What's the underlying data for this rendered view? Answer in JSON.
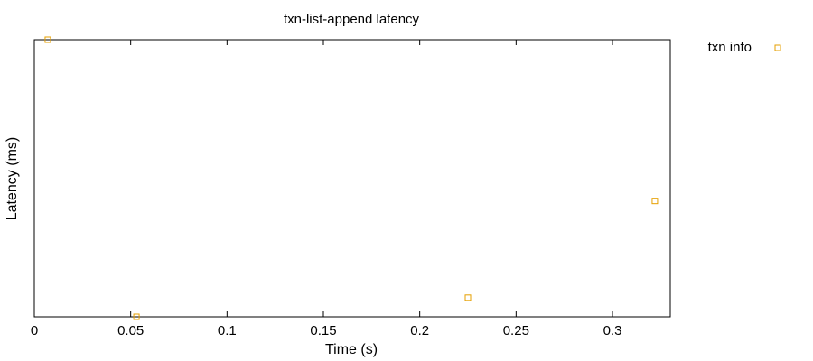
{
  "chart_data": {
    "type": "scatter",
    "title": "txn-list-append latency",
    "xlabel": "Time (s)",
    "ylabel": "Latency (ms)",
    "xlim": [
      0,
      0.33
    ],
    "x_ticks": [
      {
        "value": 0,
        "label": "0"
      },
      {
        "value": 0.05,
        "label": "0.05"
      },
      {
        "value": 0.1,
        "label": "0.1"
      },
      {
        "value": 0.15,
        "label": "0.15"
      },
      {
        "value": 0.2,
        "label": "0.2"
      },
      {
        "value": 0.25,
        "label": "0.25"
      },
      {
        "value": 0.3,
        "label": "0.3"
      }
    ],
    "y_ticks_shown": false,
    "grid": false,
    "legend_position": "outside-right-top",
    "series": [
      {
        "name": "txn info",
        "color": "#e69f00",
        "marker": "open-square",
        "points": [
          {
            "x": 0.007,
            "y": 1.0
          },
          {
            "x": 0.053,
            "y": 0.0
          },
          {
            "x": 0.225,
            "y": 0.069
          },
          {
            "x": 0.322,
            "y": 0.418
          }
        ]
      }
    ]
  }
}
